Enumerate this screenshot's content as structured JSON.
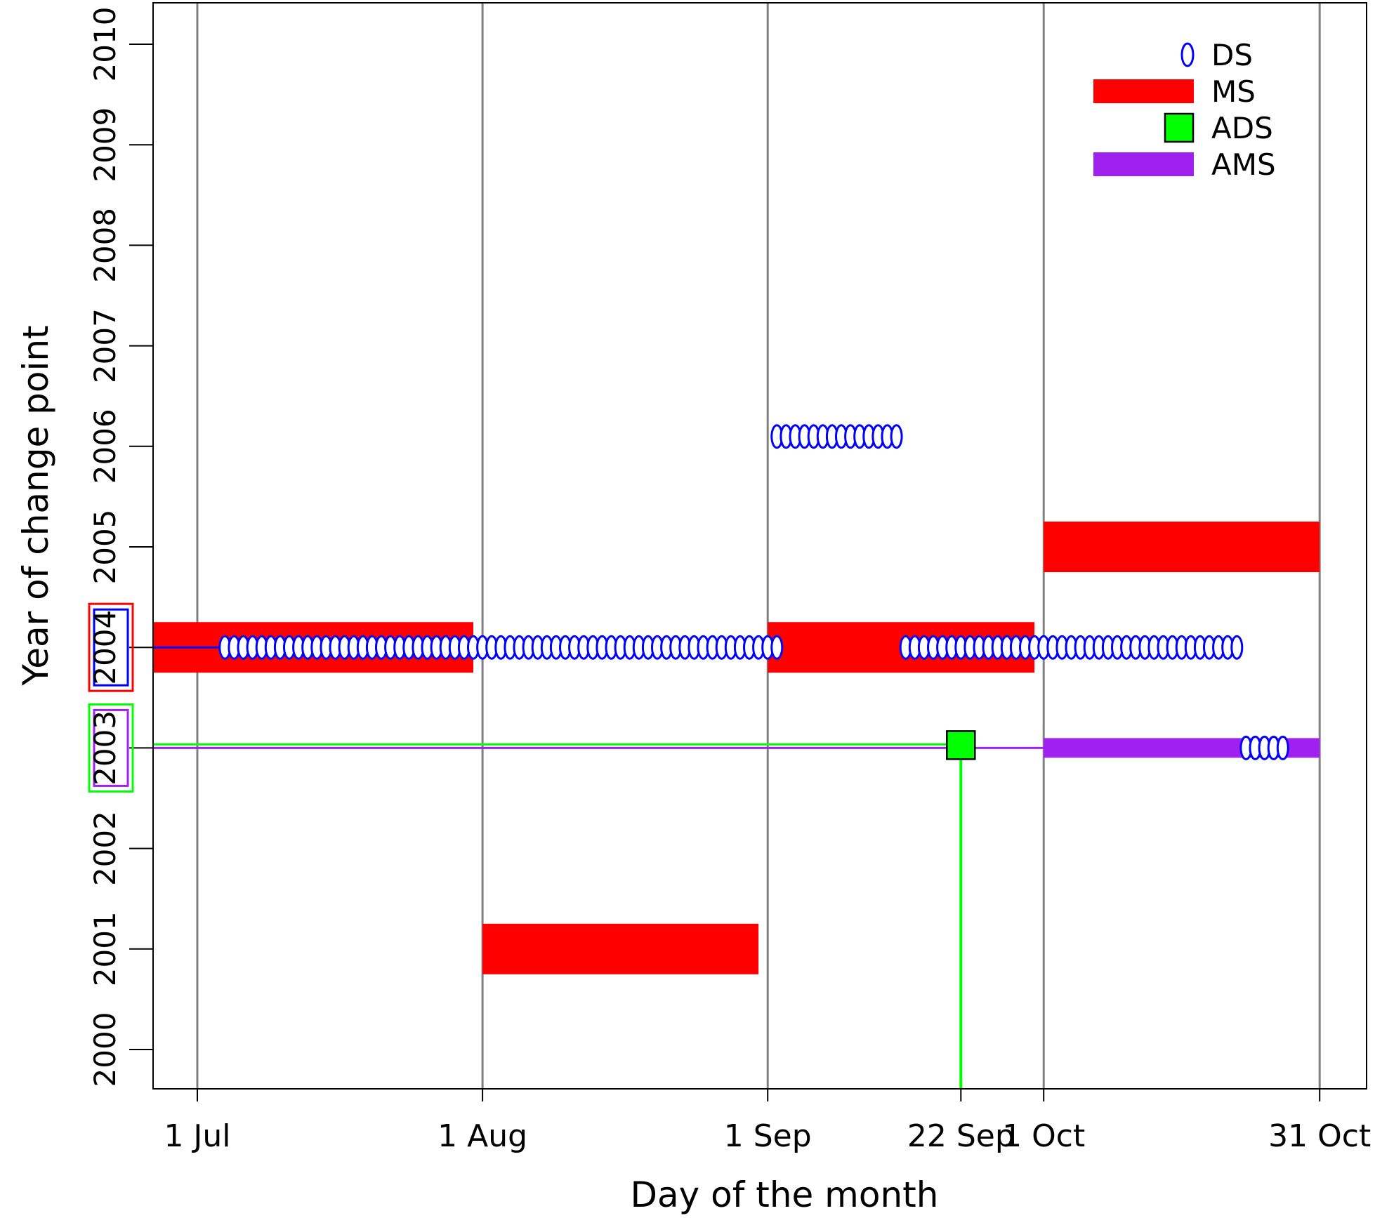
{
  "chart_data": {
    "type": "scatter",
    "xlabel": "Day of the month",
    "ylabel": "Year of change point",
    "x_ticks": [
      "1 Jul",
      "1 Aug",
      "1 Sep",
      "22 Sep",
      "1 Oct",
      "31 Oct"
    ],
    "y_ticks": [
      "2000",
      "2001",
      "2002",
      "2003",
      "2004",
      "2005",
      "2006",
      "2007",
      "2008",
      "2009",
      "2010"
    ],
    "xlim": [
      "26 Jun",
      "5 Nov"
    ],
    "ylim": [
      1999.6,
      2010.4
    ],
    "grid": "vertical at month boundaries",
    "legend_placement": "top-right",
    "legend": [
      {
        "key": "DS",
        "label": "DS"
      },
      {
        "key": "MS",
        "label": "MS"
      },
      {
        "key": "ADS",
        "label": "ADS"
      },
      {
        "key": "AMS",
        "label": "AMS"
      }
    ],
    "colors": {
      "DS": "#0000ff",
      "MS": "#ff0000",
      "ADS": "#00ff00",
      "AMS": "#a020f0",
      "grid": "#808080"
    },
    "series": {
      "MS": [
        {
          "year": 2004,
          "start": "26 Jun",
          "end": "1 Jul"
        },
        {
          "year": 2004,
          "start": "1 Jul",
          "end": "31 Jul"
        },
        {
          "year": 2001,
          "start": "1 Aug",
          "end": "31 Aug"
        },
        {
          "year": 2004,
          "start": "1 Sep",
          "end": "30 Sep"
        },
        {
          "year": 2005,
          "start": "1 Oct",
          "end": "31 Oct"
        }
      ],
      "AMS": [
        {
          "year": 2003,
          "start": "1 Oct",
          "end": "31 Oct"
        }
      ],
      "DS": [
        {
          "year": 2004,
          "start": "4 Jul",
          "end": "2 Sep"
        },
        {
          "year": 2004,
          "start": "16 Sep",
          "end": "22 Oct"
        },
        {
          "year": 2006,
          "start": "2 Sep",
          "end": "15 Sep"
        },
        {
          "year": 2003,
          "start": "23 Oct",
          "end": "27 Oct"
        }
      ],
      "ADS": {
        "year": 2003,
        "date": "22 Sep"
      }
    },
    "reference_lines": [
      {
        "series": "DS",
        "year": 2004,
        "from": "26 Jun",
        "to": "4 Jul"
      },
      {
        "series": "ADS",
        "year": 2003,
        "from": "26 Jun",
        "to": "22 Sep"
      },
      {
        "series": "ADS",
        "date": "22 Sep",
        "from_year": 2003,
        "to_year": 1999.6
      },
      {
        "series": "AMS",
        "year": 2003,
        "from": "26 Jun",
        "to": "1 Oct"
      }
    ],
    "highlighted_years": [
      {
        "label": "2004",
        "outer": "MS",
        "inner": "DS"
      },
      {
        "label": "2003",
        "outer": "ADS",
        "inner": "AMS"
      }
    ]
  }
}
